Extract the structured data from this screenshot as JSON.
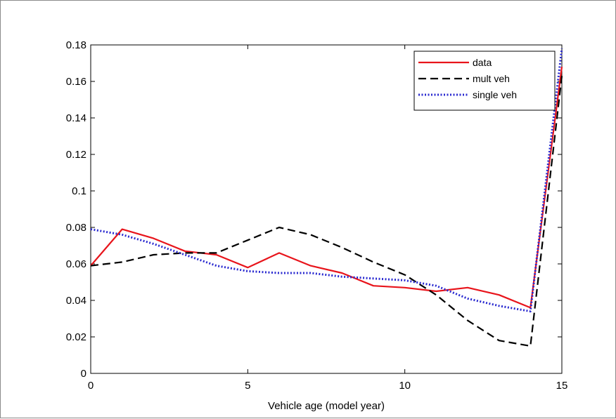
{
  "chart_data": {
    "type": "line",
    "title": "",
    "xlabel": "Vehicle age (model year)",
    "ylabel": "",
    "xlim": [
      0,
      15
    ],
    "ylim": [
      0,
      0.18
    ],
    "xticks": [
      0,
      5,
      10,
      15
    ],
    "yticks": [
      0,
      0.02,
      0.04,
      0.06,
      0.08,
      0.1,
      0.12,
      0.14,
      0.16,
      0.18
    ],
    "xtick_labels": [
      "0",
      "5",
      "10",
      "15"
    ],
    "ytick_labels": [
      "0",
      "0.02",
      "0.04",
      "0.06",
      "0.08",
      "0.1",
      "0.12",
      "0.14",
      "0.16",
      "0.18"
    ],
    "grid": false,
    "legend_position": "top-right",
    "x": [
      0,
      1,
      2,
      3,
      4,
      5,
      6,
      7,
      8,
      9,
      10,
      11,
      12,
      13,
      14,
      15
    ],
    "series": [
      {
        "name": "data",
        "color": "#e8141b",
        "style": "solid",
        "values": [
          0.059,
          0.079,
          0.074,
          0.067,
          0.065,
          0.058,
          0.066,
          0.059,
          0.055,
          0.048,
          0.047,
          0.045,
          0.047,
          0.043,
          0.036,
          0.168
        ]
      },
      {
        "name": "mult veh",
        "color": "#000000",
        "style": "dashed",
        "values": [
          0.059,
          0.061,
          0.065,
          0.066,
          0.066,
          0.073,
          0.08,
          0.076,
          0.069,
          0.061,
          0.054,
          0.043,
          0.029,
          0.018,
          0.015,
          0.163
        ]
      },
      {
        "name": "single veh",
        "color": "#2a2ad0",
        "style": "dotted",
        "values": [
          0.079,
          0.076,
          0.071,
          0.065,
          0.059,
          0.056,
          0.055,
          0.055,
          0.053,
          0.052,
          0.051,
          0.048,
          0.041,
          0.037,
          0.034,
          0.178
        ]
      }
    ]
  }
}
